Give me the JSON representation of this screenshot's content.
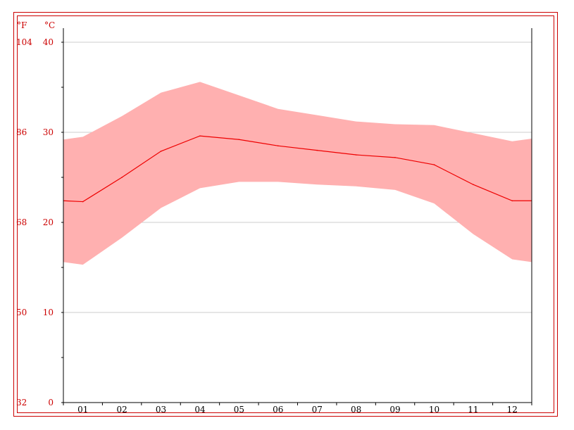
{
  "chart_data": {
    "type": "area",
    "categories": [
      "01",
      "02",
      "03",
      "04",
      "05",
      "06",
      "07",
      "08",
      "09",
      "10",
      "11",
      "12"
    ],
    "x_ticks": [
      "01",
      "02",
      "03",
      "04",
      "05",
      "06",
      "07",
      "08",
      "09",
      "10",
      "11",
      "12"
    ],
    "y_celsius_ticks": [
      "0",
      "10",
      "20",
      "30",
      "40"
    ],
    "y_fahrenheit_ticks": [
      "32",
      "50",
      "68",
      "86",
      "104"
    ],
    "celsius_unit": "°C",
    "fahrenheit_unit": "°F",
    "ylim": [
      0,
      40
    ],
    "grid": true,
    "series": [
      {
        "type": "line",
        "color": "#ee0000",
        "values": [
          22.3,
          25.0,
          27.9,
          29.6,
          29.2,
          28.5,
          28.0,
          27.5,
          27.2,
          26.4,
          24.2,
          22.4
        ]
      },
      {
        "type": "band-max",
        "color": "#ffb0b0",
        "values": [
          29.5,
          31.8,
          34.4,
          35.6,
          34.1,
          32.6,
          31.9,
          31.2,
          30.9,
          30.8,
          29.9,
          29.0
        ]
      },
      {
        "type": "band-min",
        "color": "#ffb0b0",
        "values": [
          15.3,
          18.3,
          21.6,
          23.8,
          24.5,
          24.5,
          24.2,
          24.0,
          23.6,
          22.1,
          18.7,
          15.9
        ]
      }
    ],
    "band_edge_values": {
      "start_max": 29.2,
      "start_min": 15.6,
      "start_mean": 22.4,
      "end_max": 29.3,
      "end_min": 15.6,
      "end_mean": 22.4
    }
  }
}
